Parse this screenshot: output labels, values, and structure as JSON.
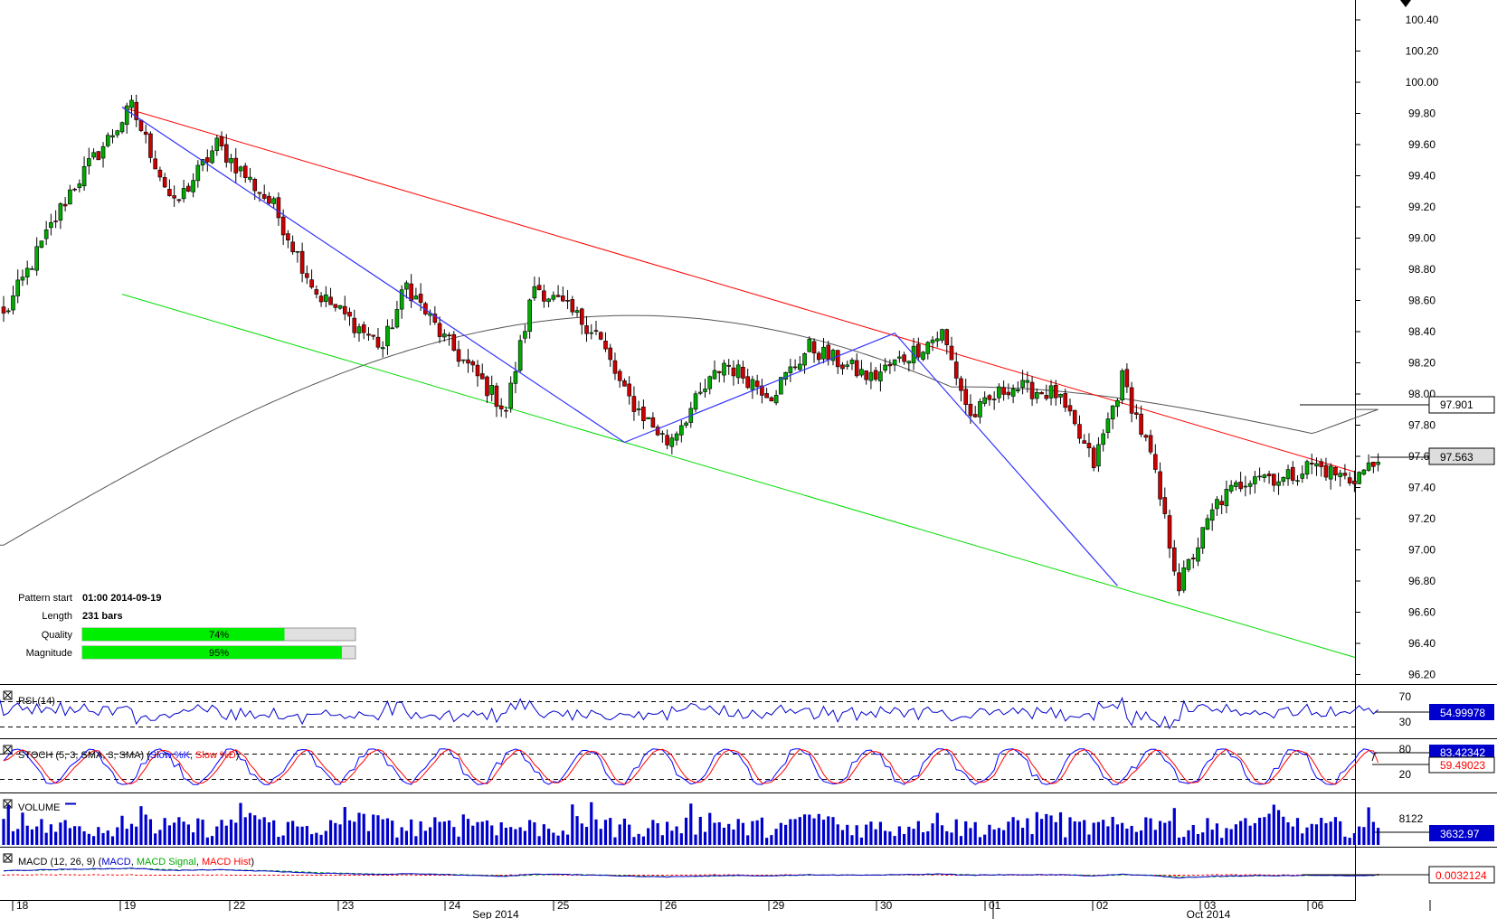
{
  "main": {
    "y_ticks": [
      "100.40",
      "100.20",
      "100.00",
      "99.80",
      "99.60",
      "99.40",
      "99.20",
      "99.00",
      "98.80",
      "98.60",
      "98.40",
      "98.20",
      "98.00",
      "97.80",
      "97.60",
      "97.40",
      "97.20",
      "97.00",
      "96.80",
      "96.60",
      "96.40",
      "96.20"
    ],
    "ma_last_label": "97.901",
    "price_last_label": "97.563",
    "pattern_info": {
      "start_label": "Pattern start",
      "start_value": "01:00 2014-09-19",
      "length_label": "Length",
      "length_value": "231 bars",
      "quality_label": "Quality",
      "quality_value": "74%",
      "quality_fraction": 0.74,
      "magnitude_label": "Magnitude",
      "magnitude_value": "95%",
      "magnitude_fraction": 0.95
    }
  },
  "rsi": {
    "title": "RSI (14)",
    "level_high": "70",
    "level_low": "30",
    "last_label": "54.99978"
  },
  "stoch": {
    "title_prefix": "STOCH (5, 3, SMA, 3, SMA) (",
    "slow_k": "Slow %K",
    "sep": ", ",
    "slow_d": "Slow %D",
    "title_suffix": ")",
    "level_high": "80",
    "level_low": "20",
    "last_k_label": "83.42342",
    "last_d_label": "59.49023"
  },
  "volume": {
    "title": "VOLUME",
    "tick": "8122",
    "last_label": "3632.97"
  },
  "macd": {
    "title_prefix": "MACD (12, 26, 9) (",
    "macd": "MACD",
    "signal": "MACD Signal",
    "hist": "MACD Hist",
    "title_suffix": ")",
    "last_label": "0.0032124"
  },
  "x_axis": {
    "day_labels": [
      "18",
      "19",
      "22",
      "23",
      "24",
      "25",
      "26",
      "29",
      "30",
      "01",
      "02",
      "03",
      "06"
    ],
    "month_labels": [
      "Sep 2014",
      "Oct 2014"
    ]
  },
  "colors": {
    "up_body": "#00aa00",
    "down_body": "#cc0000",
    "resistance_line": "#ff0000",
    "support_line": "#00dd00",
    "zigzag": "#3333ff",
    "moving_average": "#555555",
    "rsi_line": "#0000cc",
    "stoch_k": "#0000ff",
    "stoch_d": "#ff0000",
    "volume_bars": "#0000cc",
    "macd_line": "#0000cc",
    "macd_signal": "#00aa00",
    "macd_hist": "#ff0000",
    "quality_bar": "#00ee00",
    "value_box": "#0000cc"
  },
  "chart_data": {
    "type": "candlestick",
    "title": "",
    "ylim": [
      96.1,
      100.5
    ],
    "x_labels": [
      "18",
      "19",
      "22",
      "23",
      "24",
      "25",
      "26",
      "29",
      "30",
      "01",
      "02",
      "03",
      "06"
    ],
    "pattern": {
      "resistance": [
        [
          19,
          99.84
        ],
        [
          6,
          97.5
        ]
      ],
      "support": [
        [
          19,
          98.64
        ],
        [
          6,
          96.31
        ]
      ],
      "zigzag_pivots": [
        99.84,
        97.69,
        98.39,
        96.77
      ]
    },
    "close_anchors": [
      {
        "bar": 0,
        "value": 98.5
      },
      {
        "bar": 14,
        "value": 99.3
      },
      {
        "bar": 27,
        "value": 99.84
      },
      {
        "bar": 36,
        "value": 99.2
      },
      {
        "bar": 45,
        "value": 99.6
      },
      {
        "bar": 57,
        "value": 99.2
      },
      {
        "bar": 66,
        "value": 98.65
      },
      {
        "bar": 80,
        "value": 98.3
      },
      {
        "bar": 85,
        "value": 98.7
      },
      {
        "bar": 93,
        "value": 98.35
      },
      {
        "bar": 106,
        "value": 97.9
      },
      {
        "bar": 112,
        "value": 98.7
      },
      {
        "bar": 125,
        "value": 98.4
      },
      {
        "bar": 131,
        "value": 98.0
      },
      {
        "bar": 140,
        "value": 97.69
      },
      {
        "bar": 152,
        "value": 98.2
      },
      {
        "bar": 162,
        "value": 98.0
      },
      {
        "bar": 170,
        "value": 98.3
      },
      {
        "bar": 183,
        "value": 98.1
      },
      {
        "bar": 198,
        "value": 98.39
      },
      {
        "bar": 204,
        "value": 97.85
      },
      {
        "bar": 212,
        "value": 98.05
      },
      {
        "bar": 222,
        "value": 98.0
      },
      {
        "bar": 230,
        "value": 97.55
      },
      {
        "bar": 236,
        "value": 98.1
      },
      {
        "bar": 242,
        "value": 97.6
      },
      {
        "bar": 248,
        "value": 96.77
      },
      {
        "bar": 256,
        "value": 97.3
      },
      {
        "bar": 264,
        "value": 97.5
      },
      {
        "bar": 270,
        "value": 97.45
      },
      {
        "bar": 276,
        "value": 97.55
      },
      {
        "bar": 284,
        "value": 97.45
      },
      {
        "bar": 290,
        "value": 97.563
      }
    ],
    "moving_average_last": 97.901,
    "price_last": 97.563,
    "rsi_last": 54.99978,
    "stoch_last": {
      "slow_k": 83.42342,
      "slow_d": 59.49023
    },
    "volume_last": 3632.97,
    "macd_last": 0.0032124
  }
}
